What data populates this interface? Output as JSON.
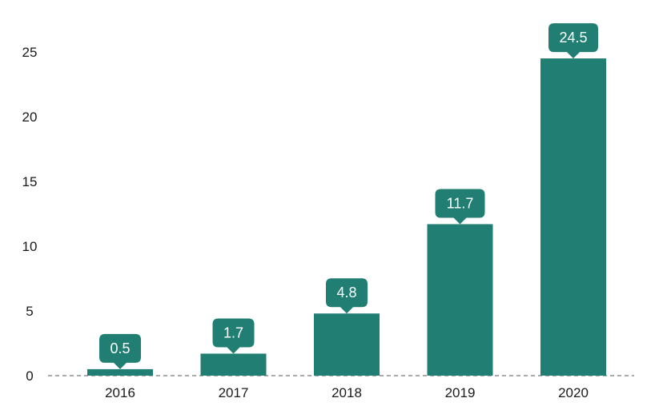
{
  "chart_data": {
    "type": "bar",
    "categories": [
      "2016",
      "2017",
      "2018",
      "2019",
      "2020"
    ],
    "values": [
      0.5,
      1.7,
      4.8,
      11.7,
      24.5
    ],
    "data_labels": [
      "0.5",
      "1.7",
      "4.8",
      "11.7",
      "24.5"
    ],
    "y_ticks": [
      "0",
      "5",
      "10",
      "15",
      "20",
      "25"
    ],
    "ylim": [
      0,
      25
    ],
    "title": "",
    "xlabel": "",
    "ylabel": "",
    "grid": false,
    "baseline": "dashed",
    "legend": "none",
    "colors": {
      "bar": "#217e72",
      "label_bg": "#217e72",
      "label_text": "#ffffff",
      "axis_text": "#1a1a1a",
      "baseline": "#777777"
    }
  }
}
